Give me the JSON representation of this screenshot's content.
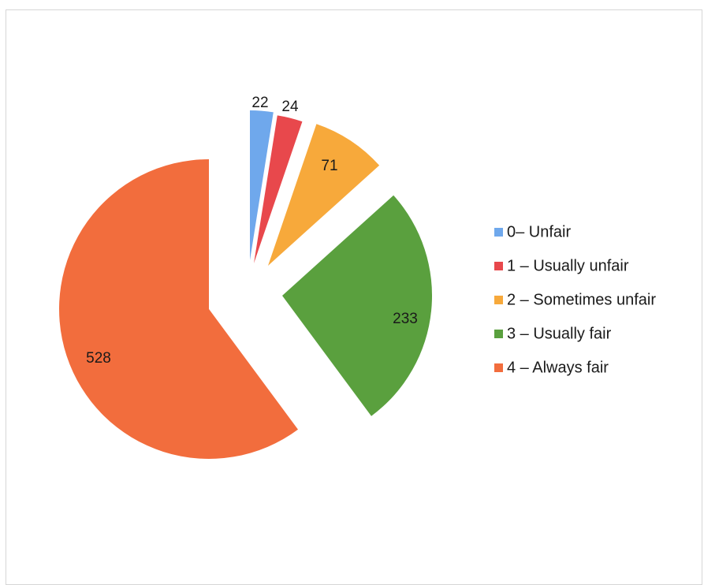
{
  "chart_data": {
    "type": "pie",
    "title": "",
    "categories": [
      "0– Unfair",
      "1 – Usually unfair",
      "2 – Sometimes unfair",
      "3 – Usually fair",
      "4 – Always fair"
    ],
    "values": [
      22,
      24,
      71,
      233,
      528
    ],
    "colors": [
      "#6fa8ec",
      "#e8484c",
      "#f7a93b",
      "#5aa03e",
      "#f26d3d"
    ],
    "exploded": true,
    "data_labels": [
      "22",
      "24",
      "71",
      "233",
      "528"
    ],
    "legend_position": "right"
  }
}
